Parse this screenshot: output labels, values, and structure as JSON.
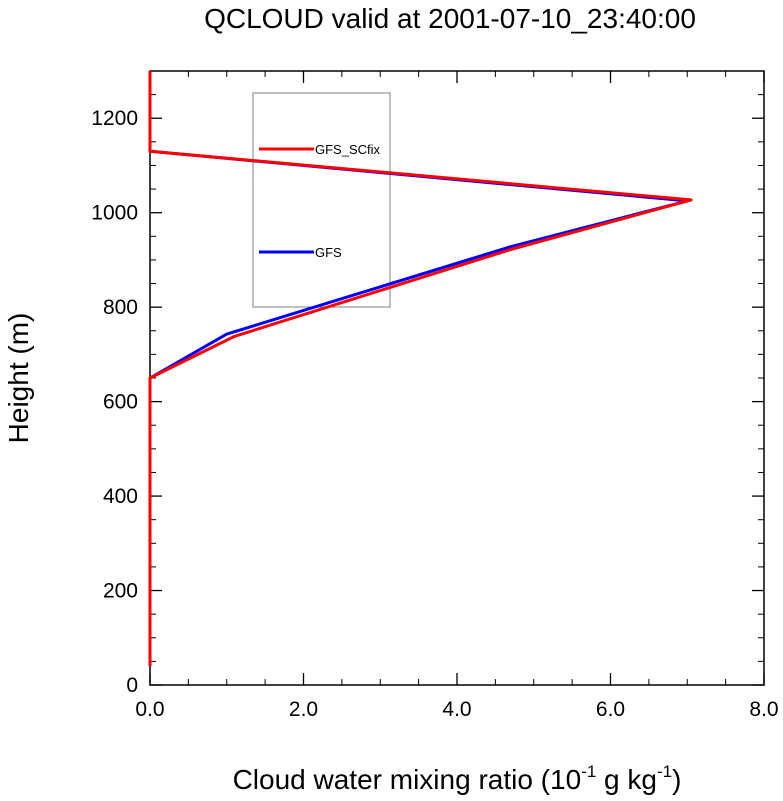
{
  "chart_data": {
    "type": "line",
    "title": "QCLOUD valid at 2001-07-10_23:40:00",
    "xlabel": {
      "base": "Cloud water mixing ratio (10",
      "sup1": "-1",
      "mid": " g kg",
      "sup2": "-1",
      "end": ")"
    },
    "ylabel": "Height (m)",
    "xlim": [
      0,
      8
    ],
    "ylim": [
      0,
      1300
    ],
    "xticks": [
      0,
      2,
      4,
      6,
      8
    ],
    "xtick_labels": [
      "0.0",
      "2.0",
      "4.0",
      "6.0",
      "8.0"
    ],
    "yticks": [
      0,
      200,
      400,
      600,
      800,
      1000,
      1200
    ],
    "ytick_labels": [
      "0",
      "200",
      "400",
      "600",
      "800",
      "1000",
      "1200"
    ],
    "grid": false,
    "legend_position": "top-left",
    "series": [
      {
        "name": "GFS_SCfix",
        "color": "#ff0000",
        "points": [
          [
            0,
            40
          ],
          [
            0,
            650
          ],
          [
            1.1,
            738
          ],
          [
            4.7,
            922
          ],
          [
            7.05,
            1027
          ],
          [
            0,
            1130
          ],
          [
            0,
            1300
          ]
        ]
      },
      {
        "name": "GFS",
        "color": "#0000ff",
        "points": [
          [
            0,
            40
          ],
          [
            0,
            650
          ],
          [
            1.0,
            743
          ],
          [
            4.7,
            928
          ],
          [
            7.0,
            1025
          ],
          [
            0,
            1130
          ],
          [
            0,
            1300
          ]
        ]
      }
    ]
  }
}
